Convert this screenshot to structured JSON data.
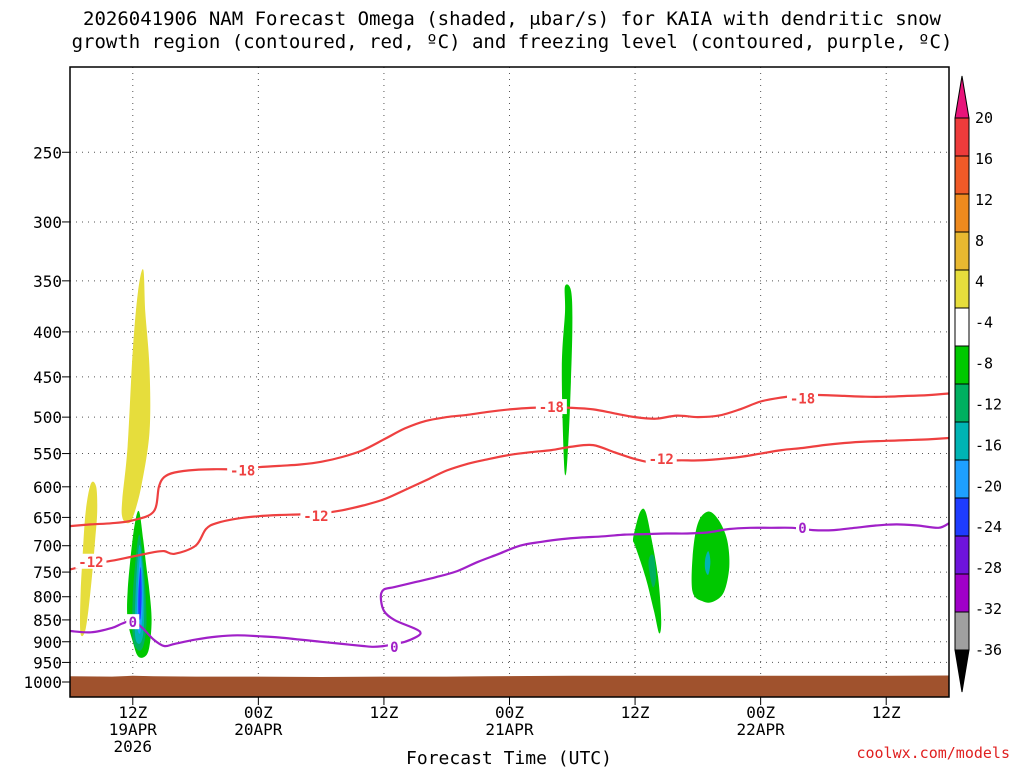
{
  "title_line1": "2026041906 NAM Forecast Omega (shaded, μbar/s) for KAIA with dendritic snow",
  "title_line2": "growth region (contoured, red, ºC) and freezing level (contoured, purple, ºC)",
  "credit": "coolwx.com/models",
  "chart_data": {
    "type": "heatmap",
    "xlabel": "Forecast Time (UTC)",
    "ylabel": "",
    "x_range_hours": [
      0,
      84
    ],
    "x_ticks": [
      {
        "h": 6,
        "line1": "12Z",
        "line2": "19APR",
        "line3": "2026"
      },
      {
        "h": 18,
        "line1": "00Z",
        "line2": "20APR",
        "line3": ""
      },
      {
        "h": 30,
        "line1": "12Z",
        "line2": "",
        "line3": ""
      },
      {
        "h": 42,
        "line1": "00Z",
        "line2": "21APR",
        "line3": ""
      },
      {
        "h": 54,
        "line1": "12Z",
        "line2": "",
        "line3": ""
      },
      {
        "h": 66,
        "line1": "00Z",
        "line2": "22APR",
        "line3": ""
      },
      {
        "h": 78,
        "line1": "12Z",
        "line2": "",
        "line3": ""
      }
    ],
    "y_ticks": [
      250,
      300,
      350,
      400,
      450,
      500,
      550,
      600,
      650,
      700,
      750,
      800,
      850,
      900,
      950,
      1000
    ],
    "y_scale": "log-pressure",
    "y_range_hpa": [
      200,
      1040
    ],
    "colorbar": {
      "labels": [
        "20",
        "16",
        "12",
        "8",
        "4",
        "-4",
        "-8",
        "-12",
        "-16",
        "-20",
        "-24",
        "-28",
        "-32",
        "-36"
      ],
      "colors": [
        "#e8147a",
        "#ee3b3b",
        "#f05a28",
        "#ee8a1e",
        "#e8b830",
        "#e6dd3c",
        "#ffffff",
        "#00c800",
        "#00b060",
        "#00b4b4",
        "#1ea0ff",
        "#1e3cff",
        "#6e14dc",
        "#a000c8",
        "#a0a0a0",
        "#000000"
      ]
    },
    "ground_top_hpa": [
      985,
      986,
      984,
      985,
      986,
      986,
      987,
      986,
      986,
      985,
      984,
      984,
      984,
      984,
      983
    ],
    "ground_x_hours": [
      0,
      4,
      6,
      8,
      12,
      18,
      24,
      30,
      36,
      40,
      48,
      56,
      66,
      76,
      84
    ],
    "ground_color": "#a0522d",
    "contours": [
      {
        "name": "-18",
        "color": "#ee4040",
        "label": "-18",
        "label_at": [
          16.5,
          575
        ],
        "label2": "-18",
        "label2_at": [
          46,
          487
        ],
        "label3": "-18",
        "label3_at": [
          70,
          476
        ],
        "x": [
          0,
          2,
          4,
          6,
          8,
          8.5,
          9,
          10,
          12,
          14,
          16,
          18,
          20,
          22,
          24,
          26,
          28,
          30,
          32,
          34,
          36,
          38,
          40,
          42,
          44,
          46,
          48,
          50,
          52,
          54,
          56,
          58,
          60,
          62,
          64,
          66,
          68,
          70,
          72,
          74,
          76,
          78,
          80,
          82,
          84
        ],
        "y": [
          665,
          662,
          660,
          655,
          640,
          600,
          585,
          578,
          574,
          573,
          573,
          570,
          568,
          566,
          562,
          555,
          545,
          530,
          515,
          505,
          500,
          497,
          493,
          490,
          488,
          487,
          488,
          490,
          495,
          500,
          502,
          498,
          500,
          498,
          490,
          480,
          475,
          472,
          472,
          473,
          474,
          474,
          473,
          472,
          470
        ]
      },
      {
        "name": "-12",
        "color": "#ee4040",
        "label": "-12",
        "label_at": [
          2,
          730
        ],
        "label2": "-12",
        "label2_at": [
          23.5,
          648
        ],
        "label3": "-12",
        "label3_at": [
          56.5,
          558
        ],
        "x": [
          0,
          2,
          4,
          6,
          8,
          9,
          10,
          12,
          13,
          14,
          16,
          18,
          20,
          22,
          24,
          26,
          28,
          30,
          32,
          34,
          36,
          38,
          40,
          42,
          44,
          46,
          48,
          50,
          52,
          54,
          56,
          58,
          60,
          62,
          64,
          66,
          68,
          70,
          72,
          74,
          76,
          78,
          80,
          82,
          84
        ],
        "y": [
          745,
          735,
          728,
          720,
          712,
          710,
          715,
          700,
          670,
          660,
          652,
          648,
          646,
          645,
          643,
          638,
          630,
          620,
          605,
          590,
          575,
          565,
          558,
          552,
          548,
          545,
          540,
          538,
          548,
          558,
          564,
          560,
          560,
          558,
          555,
          550,
          545,
          542,
          538,
          535,
          533,
          532,
          531,
          530,
          528
        ]
      },
      {
        "name": "0",
        "color": "#a020c8",
        "label": "0",
        "label_at": [
          6,
          855
        ],
        "label2": "0",
        "label2_at": [
          31,
          912
        ],
        "label3": "0",
        "label3_at": [
          70,
          668
        ],
        "x": [
          0,
          2,
          4,
          5,
          6,
          7,
          8,
          9,
          10,
          12,
          14,
          16,
          18,
          20,
          22,
          24,
          26,
          28,
          29,
          30,
          31,
          32,
          33,
          33.5,
          33,
          31,
          30,
          29.7,
          30,
          31,
          33,
          35,
          37,
          39,
          41,
          43,
          45,
          47,
          49,
          51,
          53,
          55,
          57,
          59,
          61,
          63,
          65,
          67,
          69,
          71,
          73,
          75,
          77,
          79,
          81,
          83,
          84
        ],
        "y": [
          875,
          878,
          868,
          858,
          852,
          870,
          895,
          910,
          905,
          895,
          888,
          885,
          887,
          890,
          895,
          900,
          905,
          910,
          912,
          910,
          905,
          900,
          890,
          880,
          870,
          850,
          830,
          800,
          785,
          780,
          770,
          760,
          748,
          730,
          715,
          700,
          693,
          688,
          685,
          683,
          680,
          679,
          678,
          678,
          676,
          670,
          668,
          668,
          668,
          672,
          672,
          668,
          664,
          662,
          664,
          668,
          660
        ]
      }
    ],
    "omega_blobs": [
      {
        "color": "#e6dd3c",
        "x": [
          1,
          1.5,
          2,
          2.4,
          2.6,
          2.5,
          2,
          1.5,
          1.2,
          1.0
        ],
        "y": [
          880,
          870,
          780,
          690,
          640,
          600,
          595,
          640,
          720,
          800
        ]
      },
      {
        "color": "#e6dd3c",
        "x": [
          5,
          5.5,
          6,
          6.8,
          7.6,
          7.6,
          7.2,
          7.0,
          6.5,
          6.0,
          5.5,
          5.0
        ],
        "y": [
          650,
          660,
          650,
          600,
          520,
          440,
          380,
          340,
          360,
          420,
          540,
          620
        ]
      },
      {
        "color": "#00c800",
        "x": [
          5.5,
          6,
          6.5,
          7.2,
          7.6,
          7.8,
          7.6,
          7.3,
          7.0,
          6.6,
          6.2,
          5.8,
          5.5
        ],
        "y": [
          850,
          900,
          935,
          935,
          910,
          850,
          790,
          740,
          690,
          640,
          660,
          720,
          790
        ]
      },
      {
        "color": "#00b060",
        "x": [
          6.0,
          6.5,
          7.0,
          7.3,
          7.2,
          6.9,
          6.6,
          6.3,
          6.0
        ],
        "y": [
          890,
          920,
          910,
          860,
          780,
          710,
          680,
          720,
          800
        ]
      },
      {
        "color": "#00b4b4",
        "x": [
          6.2,
          6.6,
          7.0,
          7.1,
          6.9,
          6.6,
          6.3
        ],
        "y": [
          880,
          905,
          880,
          800,
          730,
          700,
          780
        ]
      },
      {
        "color": "#1ea0ff",
        "x": [
          6.4,
          6.7,
          6.95,
          6.9,
          6.7,
          6.45
        ],
        "y": [
          860,
          880,
          830,
          760,
          720,
          790
        ]
      },
      {
        "color": "#1e3cff",
        "x": [
          6.55,
          6.75,
          6.85,
          6.75,
          6.55
        ],
        "y": [
          840,
          845,
          790,
          740,
          790
        ]
      },
      {
        "color": "#00c800",
        "x": [
          47.3,
          47.9,
          48.0,
          47.8,
          47.6,
          47.4,
          47.2,
          47.0,
          47.3
        ],
        "y": [
          355,
          360,
          400,
          480,
          540,
          580,
          560,
          440,
          380
        ]
      },
      {
        "color": "#00c800",
        "x": [
          54,
          55,
          55.8,
          56.3,
          56.5,
          56.2,
          55.6,
          55.0,
          54.5,
          54.0,
          53.8
        ],
        "y": [
          700,
          760,
          830,
          880,
          850,
          760,
          690,
          640,
          640,
          670,
          690
        ]
      },
      {
        "color": "#00b060",
        "x": [
          55.3,
          55.7,
          56.0,
          55.8,
          55.4
        ],
        "y": [
          740,
          780,
          760,
          720,
          720
        ]
      },
      {
        "color": "#00c800",
        "x": [
          59.5,
          60.5,
          61.5,
          62.5,
          63.0,
          62.8,
          62.0,
          61.0,
          60.0,
          59.5
        ],
        "y": [
          790,
          810,
          810,
          790,
          740,
          690,
          655,
          640,
          660,
          720
        ]
      },
      {
        "color": "#00b4b4",
        "x": [
          60.7,
          61.0,
          61.2,
          61.0,
          60.7
        ],
        "y": [
          745,
          755,
          730,
          710,
          725
        ]
      }
    ]
  }
}
